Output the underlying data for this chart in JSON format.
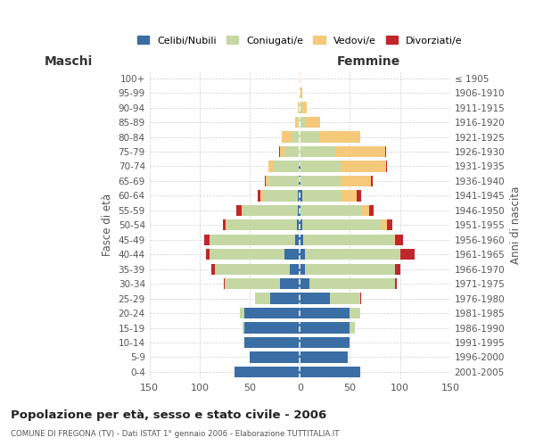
{
  "age_groups": [
    "0-4",
    "5-9",
    "10-14",
    "15-19",
    "20-24",
    "25-29",
    "30-34",
    "35-39",
    "40-44",
    "45-49",
    "50-54",
    "55-59",
    "60-64",
    "65-69",
    "70-74",
    "75-79",
    "80-84",
    "85-89",
    "90-94",
    "95-99",
    "100+"
  ],
  "birth_years": [
    "2001-2005",
    "1996-2000",
    "1991-1995",
    "1986-1990",
    "1981-1985",
    "1976-1980",
    "1971-1975",
    "1966-1970",
    "1961-1965",
    "1956-1960",
    "1951-1955",
    "1946-1950",
    "1941-1945",
    "1936-1940",
    "1931-1935",
    "1926-1930",
    "1921-1925",
    "1916-1920",
    "1911-1915",
    "1906-1910",
    "≤ 1905"
  ],
  "male": {
    "celibe": [
      65,
      50,
      55,
      55,
      55,
      30,
      20,
      10,
      15,
      5,
      3,
      2,
      2,
      1,
      1,
      0,
      0,
      0,
      0,
      0,
      0
    ],
    "coniugato": [
      0,
      0,
      0,
      2,
      5,
      15,
      55,
      75,
      75,
      85,
      70,
      55,
      35,
      30,
      25,
      15,
      8,
      2,
      1,
      0,
      0
    ],
    "vedovo": [
      0,
      0,
      0,
      0,
      0,
      0,
      0,
      0,
      0,
      0,
      1,
      1,
      2,
      3,
      5,
      5,
      10,
      3,
      1,
      0,
      0
    ],
    "divorziato": [
      0,
      0,
      0,
      0,
      0,
      0,
      1,
      3,
      4,
      5,
      3,
      5,
      3,
      1,
      0,
      1,
      0,
      0,
      0,
      0,
      0
    ]
  },
  "female": {
    "nubile": [
      60,
      48,
      50,
      50,
      50,
      30,
      10,
      5,
      5,
      3,
      2,
      1,
      2,
      1,
      1,
      0,
      0,
      0,
      0,
      0,
      0
    ],
    "coniugata": [
      0,
      0,
      0,
      5,
      10,
      30,
      85,
      90,
      95,
      90,
      80,
      60,
      40,
      40,
      40,
      35,
      20,
      5,
      2,
      1,
      0
    ],
    "vedova": [
      0,
      0,
      0,
      0,
      0,
      0,
      0,
      0,
      0,
      2,
      5,
      8,
      15,
      30,
      45,
      50,
      40,
      15,
      5,
      1,
      1
    ],
    "divorziata": [
      0,
      0,
      0,
      0,
      0,
      1,
      2,
      5,
      15,
      8,
      5,
      5,
      4,
      2,
      1,
      1,
      0,
      0,
      0,
      0,
      0
    ]
  },
  "colors": {
    "celibe": "#3A6EA5",
    "coniugato": "#C5D8A4",
    "vedovo": "#F5C97A",
    "divorziato": "#C0272D"
  },
  "xlim": 150,
  "title": "Popolazione per età, sesso e stato civile - 2006",
  "subtitle": "COMUNE DI FREGONA (TV) - Dati ISTAT 1° gennaio 2006 - Elaborazione TUTTITALIA.IT",
  "xlabel_left": "Maschi",
  "xlabel_right": "Femmine",
  "ylabel_left": "Fasce di età",
  "ylabel_right": "Anni di nascita",
  "legend_labels": [
    "Celibi/Nubili",
    "Coniugati/e",
    "Vedovi/e",
    "Divorziati/e"
  ],
  "background_color": "#ffffff",
  "grid_color": "#cccccc"
}
